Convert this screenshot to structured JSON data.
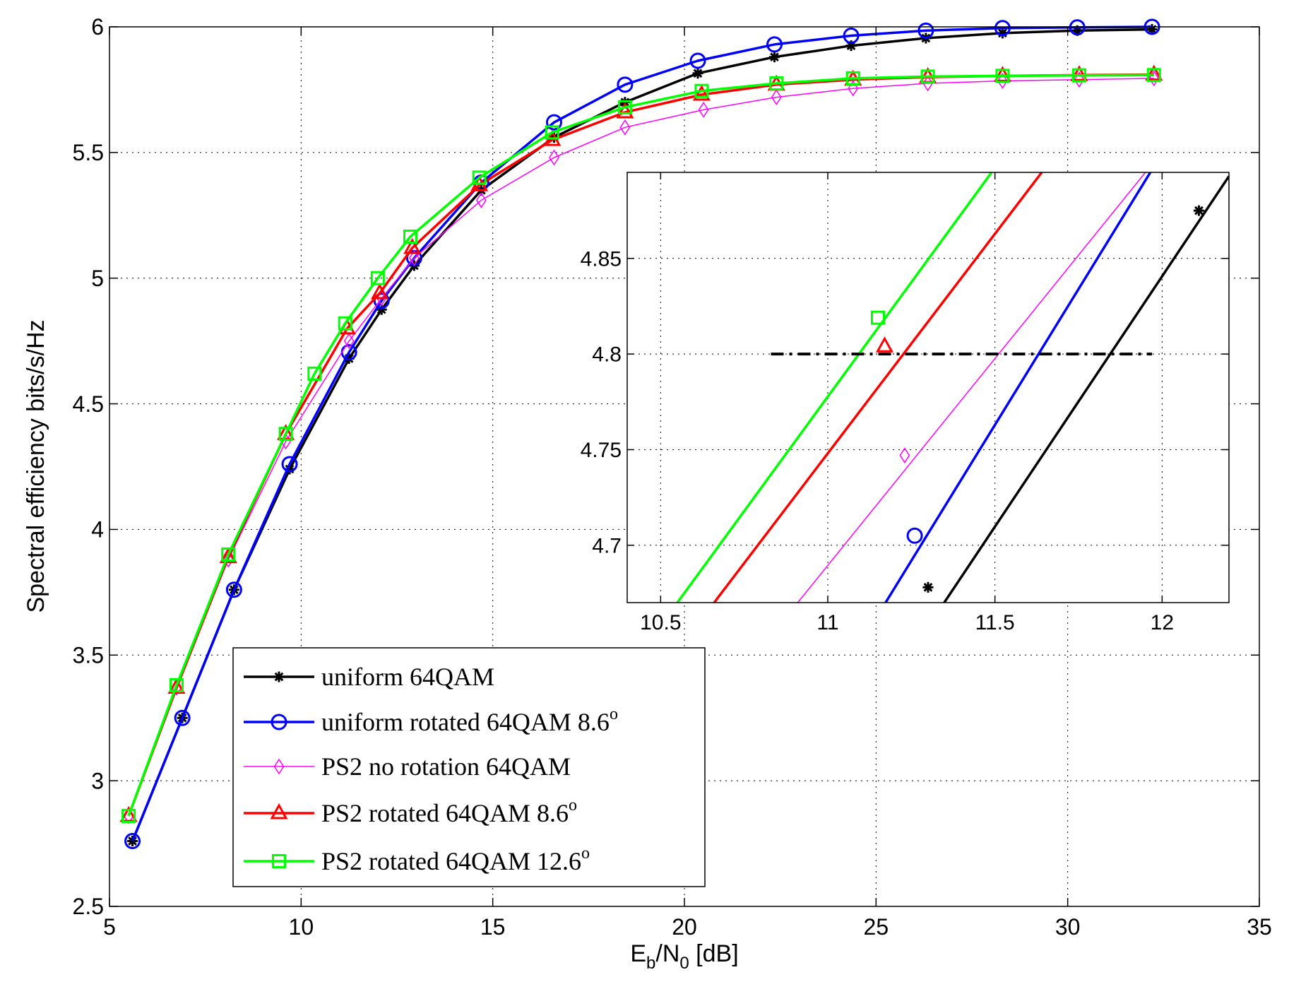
{
  "chart_data": [
    {
      "type": "line",
      "name": "main",
      "xlabel_main": "E",
      "xlabel_sub1": "b",
      "xlabel_mid": "/N",
      "xlabel_sub2": "0",
      "xlabel_tail": " [dB]",
      "ylabel": "Spectral efficiency   bits/s/Hz",
      "xlim": [
        5,
        35
      ],
      "ylim": [
        2.5,
        6
      ],
      "xticks": [
        5,
        10,
        15,
        20,
        25,
        30,
        35
      ],
      "yticks": [
        2.5,
        3,
        3.5,
        4,
        4.5,
        5,
        5.5,
        6
      ],
      "xtick_labels": [
        "5",
        "10",
        "15",
        "20",
        "25",
        "30",
        "35"
      ],
      "ytick_labels": [
        "2.5",
        "3",
        "3.5",
        "4",
        "4.5",
        "5",
        "5.5",
        "6"
      ],
      "grid": true,
      "legend_position": "bottom-left",
      "series": [
        {
          "name": "uniform 64QAM",
          "label_main": "uniform 64QAM",
          "label_angle": "",
          "color": "#000000",
          "marker": "asterisk",
          "linewidth": 3.5,
          "x": [
            5.6,
            6.9,
            8.25,
            9.7,
            11.25,
            12.1,
            12.95,
            14.7,
            16.6,
            18.45,
            20.35,
            22.35,
            24.35,
            26.3,
            28.3,
            30.25,
            32.2
          ],
          "y": [
            2.76,
            3.25,
            3.76,
            4.24,
            4.68,
            4.875,
            5.05,
            5.35,
            5.56,
            5.7,
            5.815,
            5.88,
            5.925,
            5.955,
            5.975,
            5.985,
            5.99
          ]
        },
        {
          "name": "uniform rotated 64QAM  8.6o",
          "label_main": "uniform rotated 64QAM  8.6",
          "label_angle": "o",
          "color": "#0000ff",
          "marker": "circle",
          "linewidth": 3.5,
          "x": [
            5.6,
            6.9,
            8.25,
            9.7,
            11.25,
            12.1,
            12.95,
            14.7,
            16.6,
            18.45,
            20.35,
            22.35,
            24.35,
            26.3,
            28.3,
            30.25,
            32.2
          ],
          "y": [
            2.76,
            3.25,
            3.76,
            4.26,
            4.705,
            4.91,
            5.08,
            5.38,
            5.62,
            5.77,
            5.865,
            5.93,
            5.965,
            5.985,
            5.995,
            5.998,
            6.0
          ]
        },
        {
          "name": "PS2 no rotation 64QAM",
          "label_main": "PS2 no rotation 64QAM",
          "label_angle": "",
          "color": "#ff00ff",
          "marker": "diamond",
          "linewidth": 1.5,
          "x": [
            5.5,
            6.75,
            8.1,
            9.6,
            11.25,
            12.1,
            12.95,
            14.7,
            16.6,
            18.45,
            20.5,
            22.4,
            24.4,
            26.35,
            28.3,
            30.3,
            32.25
          ],
          "y": [
            2.86,
            3.37,
            3.88,
            4.35,
            4.75,
            4.92,
            5.08,
            5.31,
            5.48,
            5.6,
            5.67,
            5.72,
            5.755,
            5.775,
            5.785,
            5.79,
            5.795
          ]
        },
        {
          "name": "PS2 rotated 64QAM 8.6o",
          "label_main": "PS2 rotated 64QAM 8.6",
          "label_angle": "o",
          "color": "#ff0000",
          "marker": "triangle",
          "linewidth": 3.5,
          "x": [
            5.5,
            6.75,
            8.1,
            9.6,
            11.2,
            12.05,
            12.9,
            14.65,
            16.55,
            18.45,
            20.45,
            22.4,
            24.4,
            26.35,
            28.3,
            30.3,
            32.25
          ],
          "y": [
            2.86,
            3.37,
            3.89,
            4.38,
            4.8,
            4.94,
            5.12,
            5.37,
            5.55,
            5.66,
            5.73,
            5.77,
            5.79,
            5.8,
            5.805,
            5.808,
            5.81
          ]
        },
        {
          "name": "PS2 rotated 64QAM 12.6o",
          "label_main": "PS2 rotated 64QAM 12.6",
          "label_angle": "o",
          "color": "#00ff00",
          "marker": "square",
          "linewidth": 3.5,
          "x": [
            5.5,
            6.75,
            8.1,
            9.6,
            10.35,
            11.15,
            12.0,
            12.85,
            14.65,
            16.55,
            18.45,
            20.45,
            22.4,
            24.4,
            26.35,
            28.3,
            30.3,
            32.25
          ],
          "y": [
            2.86,
            3.38,
            3.9,
            4.38,
            4.62,
            4.82,
            5.0,
            5.165,
            5.4,
            5.58,
            5.68,
            5.745,
            5.775,
            5.795,
            5.802,
            5.805,
            5.807,
            5.808
          ]
        }
      ]
    },
    {
      "type": "line",
      "name": "inset",
      "xlim": [
        10.4,
        12.2
      ],
      "ylim": [
        4.67,
        4.895
      ],
      "xticks": [
        10.5,
        11,
        11.5,
        12
      ],
      "yticks": [
        4.7,
        4.75,
        4.8,
        4.85
      ],
      "xtick_labels": [
        "10.5",
        "11",
        "11.5",
        "12"
      ],
      "ytick_labels": [
        "4.7",
        "4.75",
        "4.8",
        "4.85"
      ],
      "grid": true,
      "reference_line": {
        "y": 4.8,
        "x": [
          10.83,
          11.97
        ],
        "color": "#000000",
        "style": "dash-dot"
      },
      "series": [
        {
          "name": "uniform 64QAM",
          "color": "#000000",
          "marker": "asterisk",
          "linewidth": 3.5,
          "x": [
            11.1,
            12.2
          ],
          "y": [
            4.605,
            4.893
          ],
          "marker_x": [
            11.3,
            12.11
          ],
          "marker_y": [
            4.678,
            4.875
          ]
        },
        {
          "name": "uniform rotated 64QAM 8.6o",
          "color": "#0000ff",
          "marker": "circle",
          "linewidth": 3.5,
          "x": [
            11.12,
            12.0
          ],
          "y": [
            4.655,
            4.905
          ],
          "marker_x": [
            11.26
          ],
          "marker_y": [
            4.705
          ]
        },
        {
          "name": "PS2 no rotation 64QAM",
          "color": "#ff00ff",
          "marker": "diamond",
          "linewidth": 1.5,
          "x": [
            10.91,
            11.95
          ],
          "y": [
            4.67,
            4.895
          ],
          "marker_x": [
            11.23
          ],
          "marker_y": [
            4.747
          ]
        },
        {
          "name": "PS2 rotated 64QAM 8.6o",
          "color": "#ff0000",
          "marker": "triangle",
          "linewidth": 3.5,
          "x": [
            10.66,
            11.64
          ],
          "y": [
            4.67,
            4.895
          ],
          "marker_x": [
            11.17
          ],
          "marker_y": [
            4.804
          ]
        },
        {
          "name": "PS2 rotated 64QAM 12.6o",
          "color": "#00ff00",
          "marker": "square",
          "linewidth": 3.5,
          "x": [
            10.55,
            11.49
          ],
          "y": [
            4.67,
            4.895
          ],
          "marker_x": [
            11.15
          ],
          "marker_y": [
            4.819
          ]
        }
      ]
    }
  ]
}
